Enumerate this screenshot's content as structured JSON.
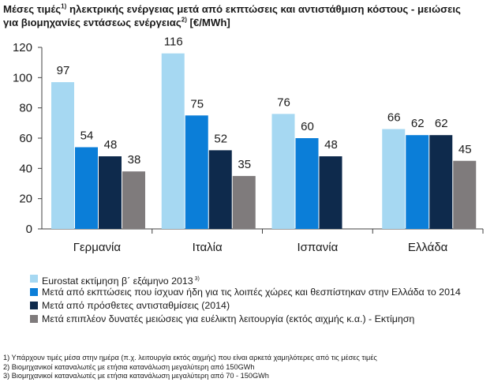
{
  "title": {
    "line1_a": "Μέσες τιμές",
    "line1_sup": "1)",
    "line1_b": " ηλεκτρικής ενέργειας μετά από εκπτώσεις και αντιστάθμιση κόστους - μειώσεις",
    "line2_a": "για βιομηχανίες εντάσεως ενέργειας",
    "line2_sup": "2)",
    "line2_b": " [€/MWh]"
  },
  "colors": {
    "series": [
      "#a6d8f2",
      "#0b7ed8",
      "#0e2a4c",
      "#7f7b7c"
    ],
    "axis": "#404040"
  },
  "chart_data": {
    "type": "bar",
    "categories": [
      "Γερμανία",
      "Ιταλία",
      "Ισπανία",
      "Ελλάδα"
    ],
    "series": [
      {
        "name": "Eurostat εκτίμηση β΄ εξάμηνο 2013",
        "name_sup": "3)",
        "values": [
          97,
          116,
          76,
          66
        ]
      },
      {
        "name": "Μετά από εκπτώσεις που ίσχυαν ήδη για τις λοιπές χώρες και θεσπίστηκαν στην Ελλάδα το 2014",
        "values": [
          54,
          75,
          60,
          62
        ]
      },
      {
        "name": "Μετά από πρόσθετες αντισταθμίσεις (2014)",
        "values": [
          48,
          52,
          48,
          62
        ]
      },
      {
        "name": "Μετά επιπλέον δυνατές μειώσεις για ευέλικτη λειτουργία (εκτός αιχμής κ.α.) - Εκτίμηση",
        "values": [
          38,
          35,
          null,
          45
        ]
      }
    ],
    "data_labels": [
      [
        "97",
        "54",
        "48",
        "38"
      ],
      [
        "116",
        "75",
        "52",
        "35"
      ],
      [
        "76",
        "60",
        "48",
        ""
      ],
      [
        "66",
        "62",
        "62",
        "45"
      ]
    ],
    "yticks": [
      0,
      20,
      40,
      60,
      80,
      100,
      120
    ],
    "ylim": [
      0,
      120
    ],
    "grid": false,
    "legend_position": "bottom"
  },
  "footnotes": [
    "1) Υπάρχουν τιμές μέσα στην ημέρα (π.χ. λειτουργία εκτός αιχμής) που είναι αρκετά χαμηλότερες από τις μέσες τιμές",
    "2) Βιομηχανικοί καταναλωτές με ετήσια κατανάλωση μεγαλύτερη από 150GWh",
    "3) Βιομηχανικοί καταναλωτές με ετήσια κατανάλωση μεγαλύτερη από 70 - 150GWh"
  ]
}
